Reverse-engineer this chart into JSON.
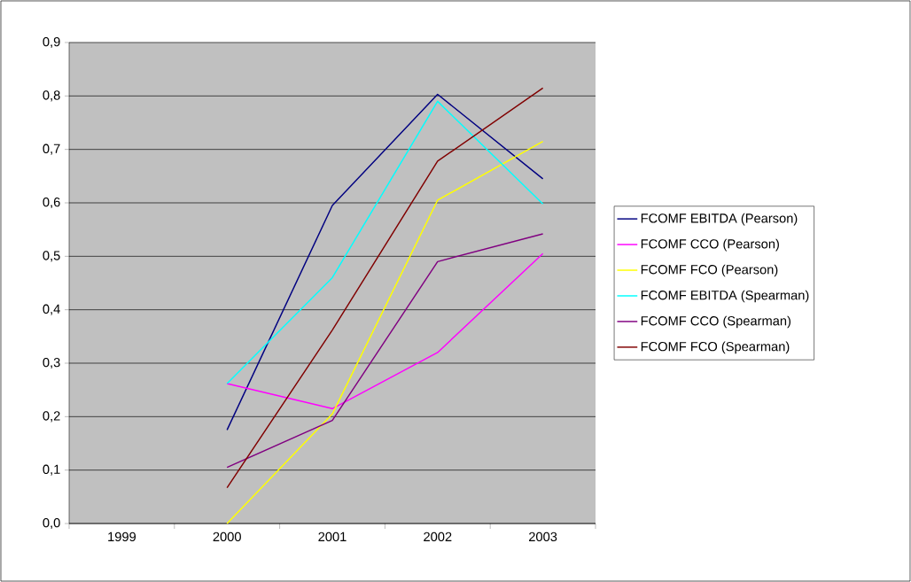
{
  "chart_data": {
    "type": "line",
    "categories": [
      "1999",
      "2000",
      "2001",
      "2002",
      "2003"
    ],
    "series": [
      {
        "name": "FCOMF EBITDA (Pearson)",
        "color": "#000080",
        "values": [
          null,
          0.175,
          0.595,
          0.803,
          0.645
        ]
      },
      {
        "name": "FCOMF CCO (Pearson)",
        "color": "#ff00ff",
        "values": [
          null,
          0.262,
          0.215,
          0.32,
          0.505
        ]
      },
      {
        "name": "FCOMF FCO (Pearson)",
        "color": "#ffff00",
        "values": [
          null,
          0.0,
          0.205,
          0.605,
          0.715
        ]
      },
      {
        "name": "FCOMF EBITDA (Spearman)",
        "color": "#00ffff",
        "values": [
          null,
          0.262,
          0.46,
          0.79,
          0.598
        ]
      },
      {
        "name": "FCOMF CCO (Spearman)",
        "color": "#800080",
        "values": [
          null,
          0.105,
          0.193,
          0.49,
          0.542
        ]
      },
      {
        "name": "FCOMF FCO (Spearman)",
        "color": "#800000",
        "values": [
          null,
          0.067,
          0.362,
          0.678,
          0.815
        ]
      }
    ],
    "ylim": [
      0,
      0.9
    ],
    "yticks": [
      {
        "value": 0,
        "label": "0,0"
      },
      {
        "value": 0.1,
        "label": "0,1"
      },
      {
        "value": 0.2,
        "label": "0,2"
      },
      {
        "value": 0.3,
        "label": "0,3"
      },
      {
        "value": 0.4,
        "label": "0,4"
      },
      {
        "value": 0.5,
        "label": "0,5"
      },
      {
        "value": 0.6,
        "label": "0,6"
      },
      {
        "value": 0.7,
        "label": "0,7"
      },
      {
        "value": 0.8,
        "label": "0,8"
      },
      {
        "value": 0.9,
        "label": "0,9"
      }
    ],
    "grid": "y",
    "legend": "right",
    "marker": "none",
    "line_style": "solid"
  }
}
